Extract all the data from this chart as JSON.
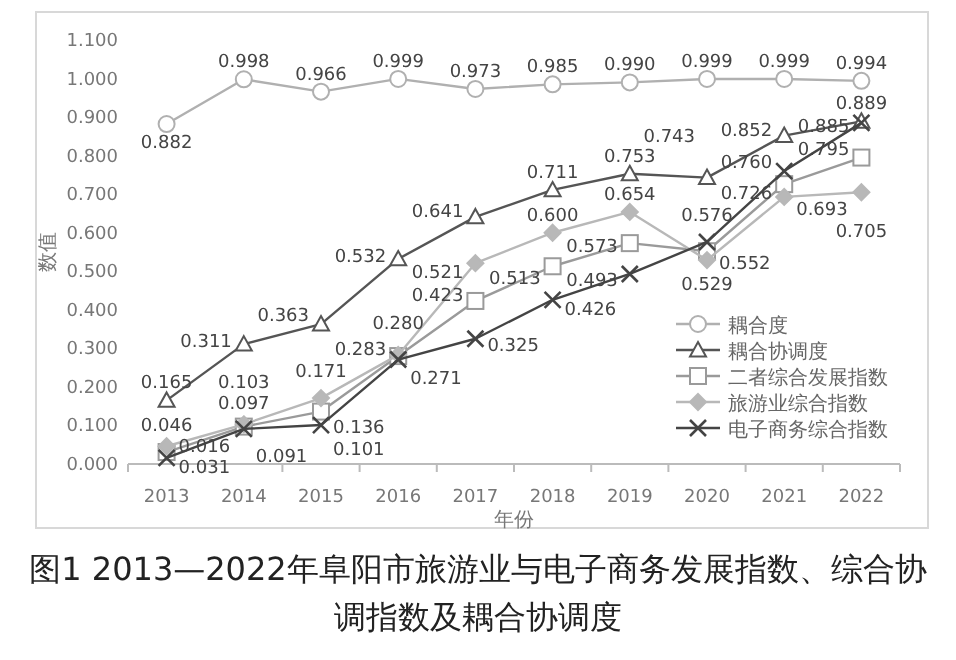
{
  "chart_data": {
    "type": "line",
    "title": "图1  2013—2022年阜阳市旅游业与电子商务发展指数、综合协调指数及耦合协调度",
    "xlabel": "年份",
    "ylabel": "数值",
    "categories": [
      "2013",
      "2014",
      "2015",
      "2016",
      "2017",
      "2018",
      "2019",
      "2020",
      "2021",
      "2022"
    ],
    "ylim": [
      0,
      1.1
    ],
    "yticks": [
      {
        "value": 0,
        "label": "0.000"
      },
      {
        "value": 0.1,
        "label": "0.100"
      },
      {
        "value": 0.2,
        "label": "0.200"
      },
      {
        "value": 0.3,
        "label": "0.300"
      },
      {
        "value": 0.4,
        "label": "0.400"
      },
      {
        "value": 0.5,
        "label": "0.500"
      },
      {
        "value": 0.6,
        "label": "0.600"
      },
      {
        "value": 0.7,
        "label": "0.700"
      },
      {
        "value": 0.8,
        "label": "0.800"
      },
      {
        "value": 0.9,
        "label": "0.900"
      },
      {
        "value": 1,
        "label": "1.000"
      },
      {
        "value": 1.1,
        "label": "1.100"
      }
    ],
    "legend": "bottom right",
    "grid": false,
    "series": [
      {
        "name": "耦合度",
        "color": "#b0b0b0",
        "marker": "circle",
        "values": [
          0.882,
          0.998,
          0.966,
          0.999,
          0.973,
          0.985,
          0.99,
          0.999,
          0.999,
          0.994
        ],
        "value_labels": [
          "0.882",
          "0.998",
          "0.966",
          "0.999",
          "0.973",
          "0.985",
          "0.990",
          "0.999",
          "0.999",
          "0.994"
        ]
      },
      {
        "name": "耦合协调度",
        "color": "#555555",
        "marker": "triangle",
        "values": [
          0.165,
          0.311,
          0.363,
          0.532,
          0.641,
          0.711,
          0.753,
          0.743,
          0.852,
          0.889
        ],
        "value_labels": [
          "0.165",
          "0.311",
          "0.363",
          "0.532",
          "0.641",
          "0.711",
          "0.753",
          "0.743",
          "0.852",
          "0.889"
        ]
      },
      {
        "name": "二者综合发展指数",
        "color": "#9a9a9a",
        "marker": "square",
        "values": [
          0.031,
          0.097,
          0.136,
          0.28,
          0.423,
          0.513,
          0.573,
          0.552,
          0.726,
          0.795
        ],
        "value_labels": [
          "0.031",
          "0.097",
          "0.136",
          "0.280",
          "0.423",
          "0.513",
          "0.573",
          "0.552",
          "0.726",
          "0.795"
        ]
      },
      {
        "name": "旅游业综合指数",
        "color": "#b8b8b8",
        "marker": "diamond",
        "values": [
          0.046,
          0.103,
          0.171,
          0.283,
          0.521,
          0.6,
          0.654,
          0.529,
          0.693,
          0.705
        ],
        "value_labels": [
          "0.046",
          "0.103",
          "0.171",
          "0.283",
          "0.521",
          "0.600",
          "0.654",
          "0.529",
          "0.693",
          "0.705"
        ]
      },
      {
        "name": "电子商务综合指数",
        "color": "#444444",
        "marker": "cross",
        "values": [
          0.016,
          0.091,
          0.101,
          0.271,
          0.325,
          0.426,
          0.493,
          0.576,
          0.76,
          0.885
        ],
        "value_labels": [
          "0.016",
          "0.091",
          "0.101",
          "0.271",
          "0.325",
          "0.426",
          "0.493",
          "0.576",
          "0.760",
          "0.885"
        ]
      }
    ]
  }
}
